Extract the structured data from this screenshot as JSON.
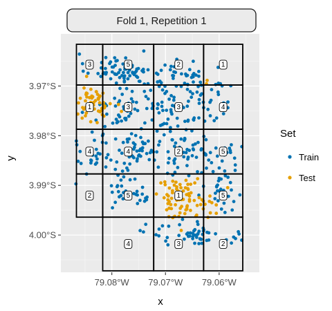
{
  "chart_data": {
    "type": "scatter",
    "facet_title": "Fold 1, Repetition 1",
    "xlabel": "x",
    "ylabel": "y",
    "xlim": [
      -79.0895,
      -79.0525
    ],
    "ylim": [
      -4.0075,
      -3.9595
    ],
    "x_ticks": [
      {
        "value": -79.08,
        "label": "79.08°W"
      },
      {
        "value": -79.07,
        "label": "79.07°W"
      },
      {
        "value": -79.06,
        "label": "79.06°W"
      }
    ],
    "y_ticks": [
      {
        "value": -3.97,
        "label": "3.97°S"
      },
      {
        "value": -3.98,
        "label": "3.98°S"
      },
      {
        "value": -3.99,
        "label": "3.99°S"
      },
      {
        "value": -4.0,
        "label": "4.00°S"
      }
    ],
    "legend": {
      "title": "Set",
      "placement": "right",
      "entries": [
        {
          "label": "Train",
          "color": "#0072B2"
        },
        {
          "label": "Test",
          "color": "#E69F00"
        }
      ]
    },
    "grid": true,
    "fold_grid": {
      "x_breaks": [
        -79.0866,
        -79.0817,
        -79.0722,
        -79.0629,
        -79.0556
      ],
      "y_breaks": [
        -3.9616,
        -3.9698,
        -3.9787,
        -3.9877,
        -3.9964,
        -4.0072
      ],
      "col_x_ranges": [
        [
          -79.0866,
          -79.0817,
          -79.0722,
          -79.0629,
          -79.0556
        ],
        [
          -79.0866,
          -79.0817,
          -79.0722,
          -79.0629,
          -79.0556
        ],
        [
          -79.0866,
          -79.0817,
          -79.0722,
          -79.0629,
          -79.0556
        ],
        [
          -79.0866,
          -79.0817,
          -79.0722,
          -79.0629,
          -79.0556
        ],
        [
          -79.0817,
          -79.0722,
          -79.0629,
          -79.0556
        ]
      ],
      "rows": [
        [
          "3",
          "5",
          "2",
          "1"
        ],
        [
          "1",
          "3",
          "3",
          "4"
        ],
        [
          "4",
          "4",
          "2",
          "5"
        ],
        [
          "2",
          "5",
          "1",
          "5"
        ],
        [
          "4",
          "3",
          "2"
        ]
      ]
    },
    "series": [
      {
        "name": "Train",
        "color": "#0072B2",
        "clusters": [
          {
            "cx": -79.08,
            "cy": -3.9665,
            "sx": 0.0025,
            "sy": 0.0015,
            "n": 45
          },
          {
            "cx": -79.074,
            "cy": -3.968,
            "sx": 0.003,
            "sy": 0.002,
            "n": 40
          },
          {
            "cx": -79.066,
            "cy": -3.968,
            "sx": 0.0025,
            "sy": 0.0015,
            "n": 30
          },
          {
            "cx": -79.077,
            "cy": -3.975,
            "sx": 0.0035,
            "sy": 0.0025,
            "n": 50
          },
          {
            "cx": -79.068,
            "cy": -3.9745,
            "sx": 0.003,
            "sy": 0.0025,
            "n": 50
          },
          {
            "cx": -79.06,
            "cy": -3.973,
            "sx": 0.0015,
            "sy": 0.0025,
            "n": 20
          },
          {
            "cx": -79.083,
            "cy": -3.984,
            "sx": 0.0025,
            "sy": 0.0025,
            "n": 30
          },
          {
            "cx": -79.075,
            "cy": -3.983,
            "sx": 0.003,
            "sy": 0.002,
            "n": 50
          },
          {
            "cx": -79.0665,
            "cy": -3.9835,
            "sx": 0.003,
            "sy": 0.0025,
            "n": 45
          },
          {
            "cx": -79.0595,
            "cy": -3.983,
            "sx": 0.002,
            "sy": 0.0025,
            "n": 25
          },
          {
            "cx": -79.076,
            "cy": -3.991,
            "sx": 0.0025,
            "sy": 0.002,
            "n": 30
          },
          {
            "cx": -79.06,
            "cy": -3.992,
            "sx": 0.0022,
            "sy": 0.0025,
            "n": 30
          },
          {
            "cx": -79.064,
            "cy": -3.9995,
            "sx": 0.002,
            "sy": 0.0012,
            "n": 35
          },
          {
            "cx": -79.07,
            "cy": -4.0,
            "sx": 0.002,
            "sy": 0.0012,
            "n": 12
          },
          {
            "cx": -79.057,
            "cy": -4.0005,
            "sx": 0.0012,
            "sy": 0.0012,
            "n": 8
          }
        ]
      },
      {
        "name": "Test",
        "color": "#E69F00",
        "clusters": [
          {
            "cx": -79.0835,
            "cy": -3.9735,
            "sx": 0.0018,
            "sy": 0.0018,
            "n": 55
          },
          {
            "cx": -79.0665,
            "cy": -3.9925,
            "sx": 0.0028,
            "sy": 0.002,
            "n": 80
          },
          {
            "cx": -79.0625,
            "cy": -3.969,
            "sx": 0.0003,
            "sy": 0.0003,
            "n": 2
          }
        ]
      }
    ]
  }
}
